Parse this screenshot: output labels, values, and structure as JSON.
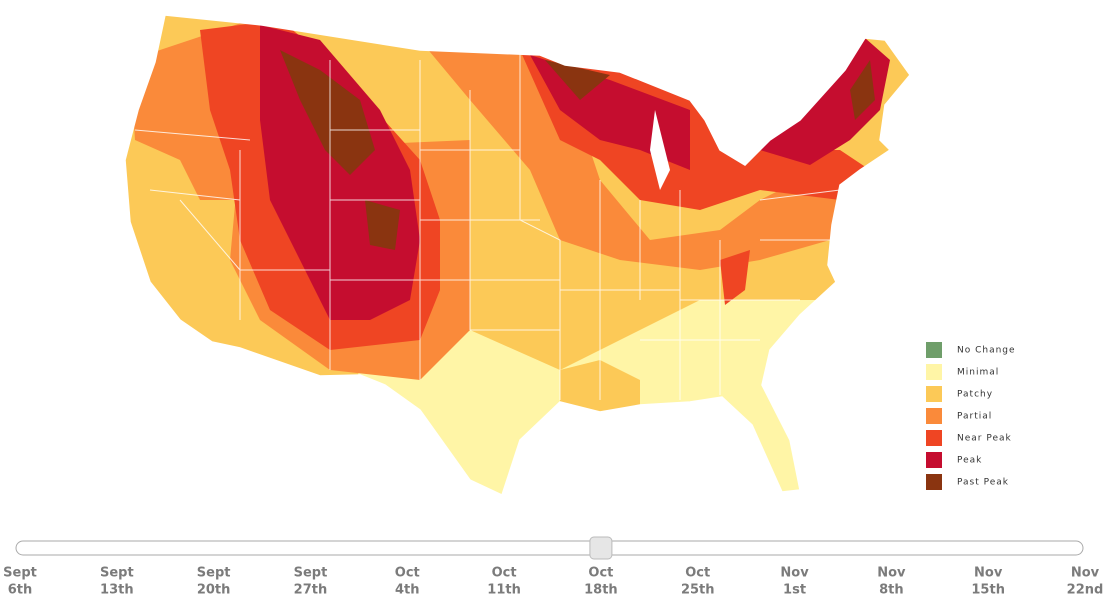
{
  "legend": [
    {
      "label": "No Change",
      "color": "#6f9e6a"
    },
    {
      "label": "Minimal",
      "color": "#fff5a6"
    },
    {
      "label": "Patchy",
      "color": "#fcc957"
    },
    {
      "label": "Partial",
      "color": "#fa8a3a"
    },
    {
      "label": "Near Peak",
      "color": "#ef4523"
    },
    {
      "label": "Peak",
      "color": "#c50d2f"
    },
    {
      "label": "Past Peak",
      "color": "#8a3410"
    }
  ],
  "slider": {
    "selected": 6,
    "dates": [
      {
        "month": "Sept",
        "day": "6th"
      },
      {
        "month": "Sept",
        "day": "13th"
      },
      {
        "month": "Sept",
        "day": "20th"
      },
      {
        "month": "Sept",
        "day": "27th"
      },
      {
        "month": "Oct",
        "day": "4th"
      },
      {
        "month": "Oct",
        "day": "11th"
      },
      {
        "month": "Oct",
        "day": "18th"
      },
      {
        "month": "Oct",
        "day": "25th"
      },
      {
        "month": "Nov",
        "day": "1st"
      },
      {
        "month": "Nov",
        "day": "8th"
      },
      {
        "month": "Nov",
        "day": "15th"
      },
      {
        "month": "Nov",
        "day": "22nd"
      }
    ]
  }
}
